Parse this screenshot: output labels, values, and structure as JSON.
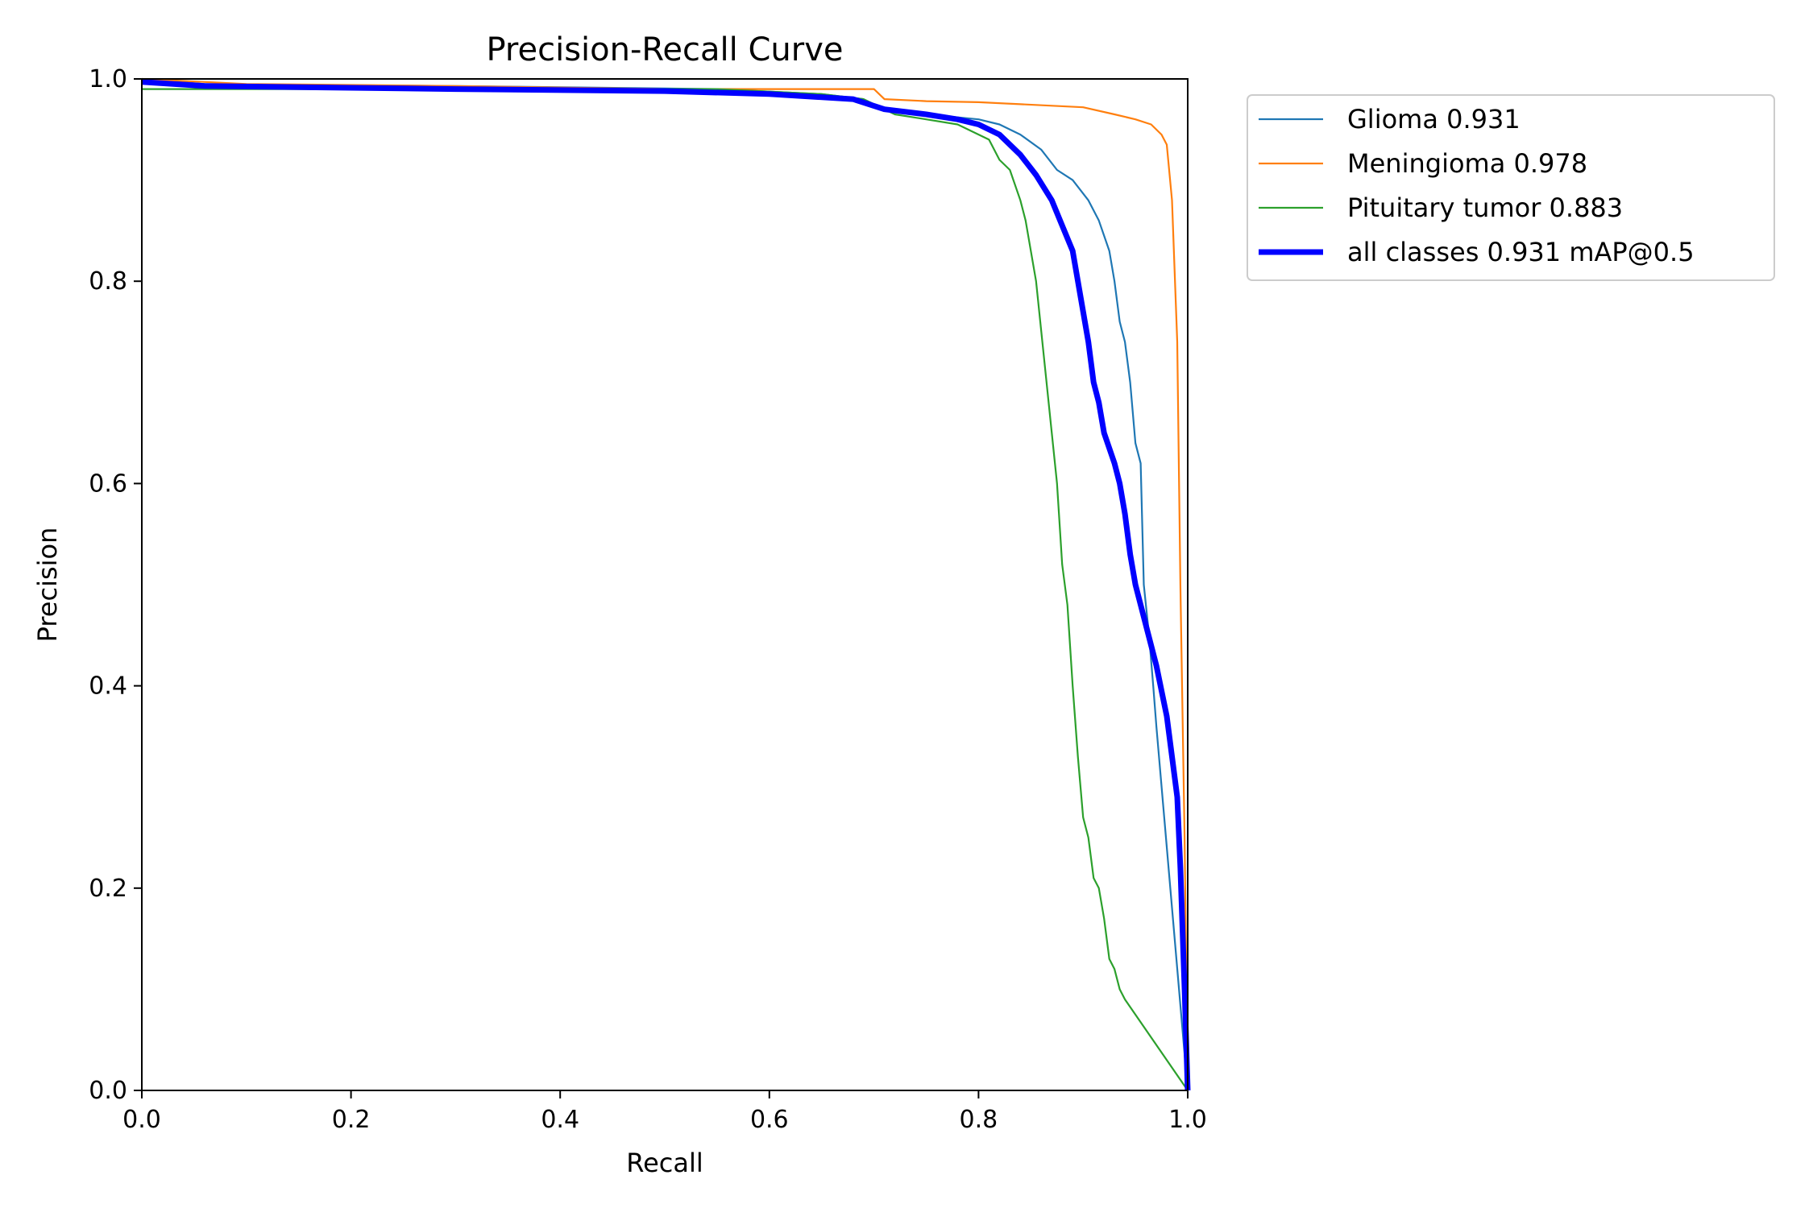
{
  "chart_data": {
    "type": "line",
    "title": "Precision-Recall Curve",
    "xlabel": "Recall",
    "ylabel": "Precision",
    "xlim": [
      0,
      1
    ],
    "ylim": [
      0,
      1
    ],
    "x_ticks": [
      "0.0",
      "0.2",
      "0.4",
      "0.6",
      "0.8",
      "1.0"
    ],
    "y_ticks": [
      "0.0",
      "0.2",
      "0.4",
      "0.6",
      "0.8",
      "1.0"
    ],
    "grid": false,
    "legend_position": "outside-top-right",
    "series": [
      {
        "name": "Glioma 0.931",
        "color": "#1f77b4",
        "line_width": "thin",
        "points": [
          [
            0,
            1.0
          ],
          [
            0.06,
            0.995
          ],
          [
            0.3,
            0.993
          ],
          [
            0.55,
            0.99
          ],
          [
            0.65,
            0.985
          ],
          [
            0.69,
            0.98
          ],
          [
            0.71,
            0.97
          ],
          [
            0.75,
            0.965
          ],
          [
            0.8,
            0.96
          ],
          [
            0.82,
            0.955
          ],
          [
            0.84,
            0.945
          ],
          [
            0.86,
            0.93
          ],
          [
            0.875,
            0.91
          ],
          [
            0.89,
            0.9
          ],
          [
            0.905,
            0.88
          ],
          [
            0.915,
            0.86
          ],
          [
            0.925,
            0.83
          ],
          [
            0.93,
            0.8
          ],
          [
            0.935,
            0.76
          ],
          [
            0.94,
            0.74
          ],
          [
            0.945,
            0.7
          ],
          [
            0.95,
            0.64
          ],
          [
            0.955,
            0.62
          ],
          [
            0.958,
            0.5
          ],
          [
            0.963,
            0.45
          ],
          [
            0.967,
            0.4
          ],
          [
            0.97,
            0.36
          ],
          [
            1.0,
            0.0
          ]
        ]
      },
      {
        "name": "Meningioma 0.978",
        "color": "#ff7f0e",
        "line_width": "thin",
        "points": [
          [
            0,
            1.0
          ],
          [
            0.1,
            0.995
          ],
          [
            0.3,
            0.993
          ],
          [
            0.5,
            0.99
          ],
          [
            0.6,
            0.99
          ],
          [
            0.7,
            0.99
          ],
          [
            0.71,
            0.98
          ],
          [
            0.75,
            0.978
          ],
          [
            0.8,
            0.977
          ],
          [
            0.84,
            0.975
          ],
          [
            0.9,
            0.972
          ],
          [
            0.93,
            0.965
          ],
          [
            0.95,
            0.96
          ],
          [
            0.965,
            0.955
          ],
          [
            0.975,
            0.945
          ],
          [
            0.98,
            0.935
          ],
          [
            0.985,
            0.88
          ],
          [
            0.99,
            0.74
          ],
          [
            0.993,
            0.5
          ],
          [
            0.997,
            0.25
          ],
          [
            1.0,
            0.0
          ]
        ]
      },
      {
        "name": "Pituitary tumor 0.883",
        "color": "#2ca02c",
        "line_width": "thin",
        "points": [
          [
            0,
            0.99
          ],
          [
            0.2,
            0.99
          ],
          [
            0.4,
            0.99
          ],
          [
            0.55,
            0.99
          ],
          [
            0.65,
            0.985
          ],
          [
            0.69,
            0.98
          ],
          [
            0.72,
            0.965
          ],
          [
            0.75,
            0.96
          ],
          [
            0.78,
            0.955
          ],
          [
            0.81,
            0.94
          ],
          [
            0.82,
            0.92
          ],
          [
            0.83,
            0.91
          ],
          [
            0.84,
            0.88
          ],
          [
            0.845,
            0.86
          ],
          [
            0.85,
            0.83
          ],
          [
            0.855,
            0.8
          ],
          [
            0.86,
            0.75
          ],
          [
            0.865,
            0.7
          ],
          [
            0.87,
            0.65
          ],
          [
            0.875,
            0.6
          ],
          [
            0.88,
            0.52
          ],
          [
            0.885,
            0.48
          ],
          [
            0.89,
            0.4
          ],
          [
            0.895,
            0.33
          ],
          [
            0.9,
            0.27
          ],
          [
            0.905,
            0.25
          ],
          [
            0.91,
            0.21
          ],
          [
            0.915,
            0.2
          ],
          [
            0.92,
            0.17
          ],
          [
            0.925,
            0.13
          ],
          [
            0.93,
            0.12
          ],
          [
            0.935,
            0.1
          ],
          [
            0.94,
            0.09
          ],
          [
            1.0,
            0.0
          ]
        ]
      },
      {
        "name": "all classes 0.931 mAP@0.5",
        "color": "#0000ff",
        "line_width": "thick",
        "points": [
          [
            0,
            0.997
          ],
          [
            0.06,
            0.993
          ],
          [
            0.3,
            0.99
          ],
          [
            0.5,
            0.988
          ],
          [
            0.6,
            0.985
          ],
          [
            0.68,
            0.98
          ],
          [
            0.71,
            0.97
          ],
          [
            0.75,
            0.965
          ],
          [
            0.78,
            0.96
          ],
          [
            0.8,
            0.955
          ],
          [
            0.82,
            0.945
          ],
          [
            0.84,
            0.925
          ],
          [
            0.855,
            0.905
          ],
          [
            0.87,
            0.88
          ],
          [
            0.88,
            0.855
          ],
          [
            0.89,
            0.83
          ],
          [
            0.895,
            0.8
          ],
          [
            0.9,
            0.77
          ],
          [
            0.905,
            0.74
          ],
          [
            0.91,
            0.7
          ],
          [
            0.915,
            0.68
          ],
          [
            0.92,
            0.65
          ],
          [
            0.93,
            0.62
          ],
          [
            0.935,
            0.6
          ],
          [
            0.94,
            0.57
          ],
          [
            0.945,
            0.53
          ],
          [
            0.95,
            0.5
          ],
          [
            0.96,
            0.46
          ],
          [
            0.97,
            0.42
          ],
          [
            0.98,
            0.37
          ],
          [
            0.985,
            0.33
          ],
          [
            0.99,
            0.29
          ],
          [
            0.993,
            0.22
          ],
          [
            0.997,
            0.1
          ],
          [
            1.0,
            0.0
          ]
        ]
      }
    ]
  }
}
